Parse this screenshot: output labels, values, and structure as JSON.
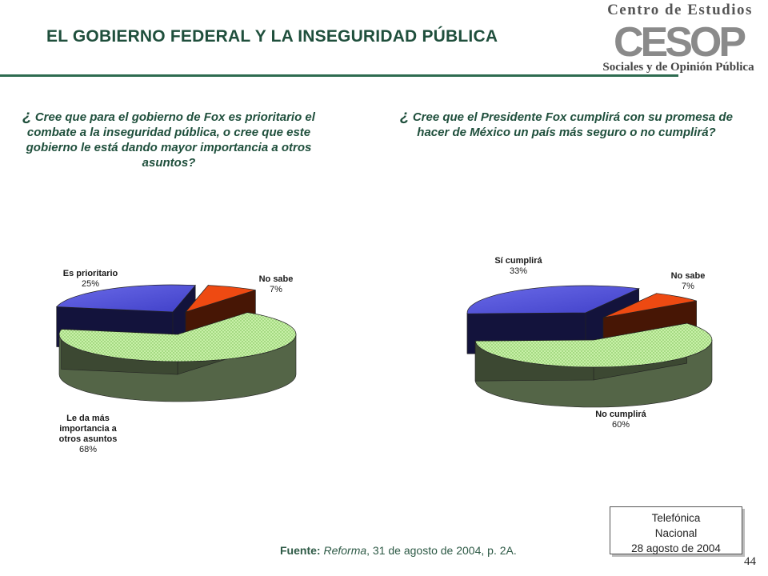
{
  "header": {
    "title": "EL GOBIERNO FEDERAL Y LA INSEGURIDAD PÚBLICA",
    "logo_top": "Centro de Estudios",
    "logo_mid": "CESOP",
    "logo_bottom": "Sociales y de Opinión Pública"
  },
  "questions": {
    "q1_lead": "¿",
    "q1_text": "Cree que para el gobierno de Fox es prioritario el combate a la inseguridad pública, o cree que este gobierno le está dando mayor importancia a otros asuntos?",
    "q2_lead": "¿",
    "q2_text": "Cree que el Presidente Fox cumplirá con su promesa de hacer de México un país más seguro o no cumplirá?"
  },
  "chart_data": [
    {
      "type": "pie",
      "style": "3d-exploded",
      "slices": [
        {
          "label_lines": [
            "Es prioritario"
          ],
          "value": 25,
          "value_label": "25%",
          "color": "#4040c8"
        },
        {
          "label_lines": [
            "No sabe"
          ],
          "value": 7,
          "value_label": "7%",
          "color": "#ee4a12"
        },
        {
          "label_lines": [
            "Le da más",
            "importancia a",
            "otros asuntos"
          ],
          "value": 68,
          "value_label": "68%",
          "color": "#c8f0a8"
        }
      ]
    },
    {
      "type": "pie",
      "style": "3d-exploded",
      "slices": [
        {
          "label_lines": [
            "Sí cumplirá"
          ],
          "value": 33,
          "value_label": "33%",
          "color": "#4040c8"
        },
        {
          "label_lines": [
            "No sabe"
          ],
          "value": 7,
          "value_label": "7%",
          "color": "#ee4a12"
        },
        {
          "label_lines": [
            "No cumplirá"
          ],
          "value": 60,
          "value_label": "60%",
          "color": "#c8f0a8"
        }
      ]
    }
  ],
  "footer": {
    "source_label": "Fuente:",
    "source_publication": "Reforma",
    "source_rest": ", 31 de agosto de 2004, p. 2A.",
    "method_line1": "Telefónica",
    "method_line2": "Nacional",
    "method_line3": "28 agosto de 2004",
    "page_number": "44"
  }
}
